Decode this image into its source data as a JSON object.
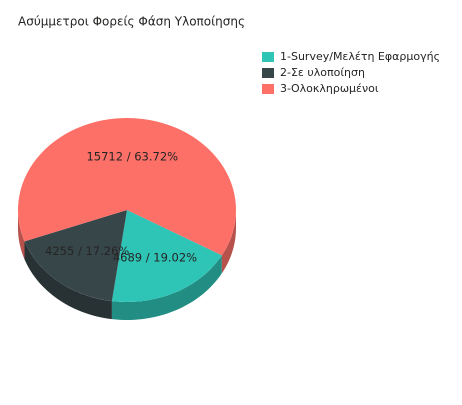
{
  "chart_data": {
    "type": "pie3d",
    "title": "Ασύμμετροι Φορείς Φάση Υλοποίησης",
    "categories": [
      "1-Survey/Μελέτη Εφαρμογής",
      "2-Σε υλοποίηση",
      "3-Ολοκληρωμένοι"
    ],
    "values": [
      4689,
      4255,
      15712
    ],
    "value_labels": [
      "4689 /  19.02%",
      "4255 /  17.26%",
      "15712 /  63.72%"
    ],
    "colors": [
      "#2ec4b6",
      "#374649",
      "#fd7068"
    ],
    "legend": "top-right"
  }
}
